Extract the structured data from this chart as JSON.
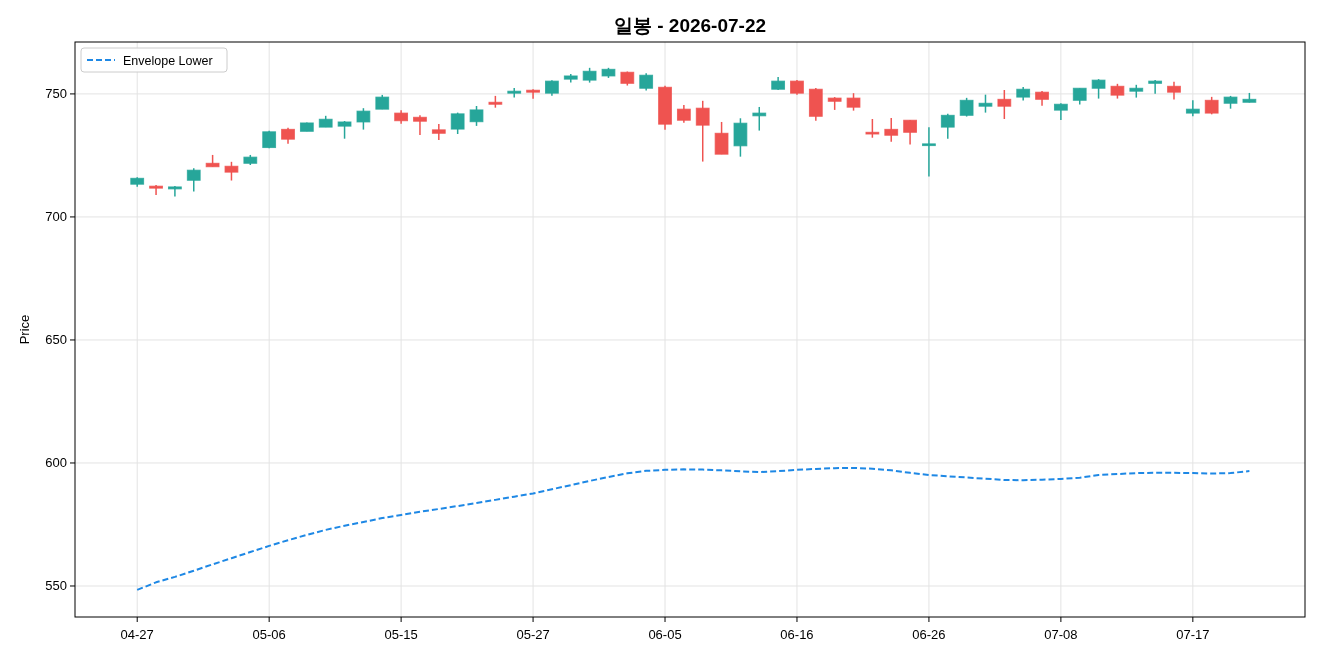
{
  "chart_data": {
    "type": "candlestick",
    "title": "일봉 - 2026-07-22",
    "ylabel": "Price",
    "categories": [
      "04-27",
      null,
      null,
      null,
      null,
      null,
      null,
      "05-06",
      null,
      null,
      null,
      null,
      null,
      null,
      "05-15",
      null,
      null,
      null,
      null,
      null,
      null,
      "05-27",
      null,
      null,
      null,
      null,
      null,
      null,
      "06-05",
      null,
      null,
      null,
      null,
      null,
      null,
      "06-16",
      null,
      null,
      null,
      null,
      null,
      null,
      "06-26",
      null,
      null,
      null,
      null,
      null,
      null,
      "07-08",
      null,
      null,
      null,
      null,
      null,
      null,
      "07-17",
      null,
      null,
      null
    ],
    "ylim": [
      537.4,
      771.1
    ],
    "yticks": [
      550,
      600,
      650,
      700,
      750
    ],
    "grid": true,
    "legend": "top left",
    "series": [
      {
        "type": "candlestick",
        "ohlc": [
          [
            713.3,
            716.1,
            712.3,
            715.7
          ],
          [
            712.5,
            713.0,
            708.9,
            711.7
          ],
          [
            711.4,
            712.6,
            708.3,
            712.2
          ],
          [
            714.9,
            719.8,
            710.3,
            719.0
          ],
          [
            721.8,
            725.2,
            720.4,
            720.4
          ],
          [
            720.6,
            722.4,
            714.8,
            718.2
          ],
          [
            721.8,
            725.2,
            721.1,
            724.3
          ],
          [
            728.2,
            735.0,
            727.9,
            734.6
          ],
          [
            735.6,
            736.2,
            729.7,
            731.6
          ],
          [
            734.8,
            738.4,
            734.8,
            738.2
          ],
          [
            736.5,
            741.1,
            736.5,
            739.7
          ],
          [
            736.9,
            739.0,
            731.8,
            738.6
          ],
          [
            738.6,
            744.2,
            735.5,
            743.0
          ],
          [
            743.8,
            749.6,
            743.8,
            748.7
          ],
          [
            742.2,
            743.4,
            737.9,
            739.1
          ],
          [
            740.5,
            741.3,
            733.3,
            738.9
          ],
          [
            735.4,
            737.8,
            731.3,
            734.0
          ],
          [
            735.7,
            742.4,
            733.7,
            741.9
          ],
          [
            738.7,
            745.1,
            737.0,
            743.5
          ],
          [
            746.6,
            749.2,
            744.4,
            745.8
          ],
          [
            750.3,
            752.4,
            748.5,
            751.1
          ],
          [
            751.5,
            751.9,
            748.0,
            750.7
          ],
          [
            750.3,
            755.6,
            749.3,
            755.2
          ],
          [
            756.0,
            758.1,
            754.6,
            757.3
          ],
          [
            755.6,
            760.6,
            754.6,
            759.2
          ],
          [
            757.3,
            760.6,
            756.5,
            760.0
          ],
          [
            758.8,
            759.1,
            753.4,
            754.3
          ],
          [
            752.3,
            758.4,
            751.4,
            757.6
          ],
          [
            752.7,
            753.3,
            735.4,
            737.7
          ],
          [
            743.8,
            745.5,
            738.3,
            739.3
          ],
          [
            744.2,
            747.2,
            722.5,
            737.3
          ],
          [
            734.0,
            738.6,
            725.5,
            725.5
          ],
          [
            728.9,
            740.1,
            724.5,
            738.1
          ],
          [
            741.1,
            744.7,
            735.1,
            742.2
          ],
          [
            751.9,
            756.9,
            751.6,
            755.2
          ],
          [
            755.2,
            755.7,
            749.7,
            750.3
          ],
          [
            751.9,
            752.4,
            739.1,
            740.9
          ],
          [
            748.3,
            748.7,
            743.5,
            747.0
          ],
          [
            748.3,
            750.3,
            743.2,
            744.6
          ],
          [
            734.4,
            739.8,
            732.2,
            733.7
          ],
          [
            735.6,
            740.2,
            730.6,
            733.2
          ],
          [
            739.3,
            739.4,
            729.4,
            734.4
          ],
          [
            729.0,
            736.5,
            716.4,
            729.7
          ],
          [
            736.5,
            741.9,
            731.8,
            741.3
          ],
          [
            741.3,
            748.4,
            740.8,
            747.4
          ],
          [
            745.0,
            749.7,
            742.4,
            746.2
          ],
          [
            747.8,
            751.6,
            739.8,
            745.0
          ],
          [
            748.7,
            752.8,
            747.3,
            751.9
          ],
          [
            750.7,
            751.2,
            745.2,
            747.8
          ],
          [
            743.4,
            746.2,
            739.4,
            745.8
          ],
          [
            747.4,
            752.3,
            745.7,
            752.3
          ],
          [
            752.3,
            756.0,
            748.1,
            755.6
          ],
          [
            753.1,
            754.1,
            748.1,
            749.5
          ],
          [
            751.1,
            753.7,
            748.5,
            752.3
          ],
          [
            754.3,
            755.7,
            750.1,
            755.2
          ],
          [
            753.1,
            754.9,
            747.7,
            750.7
          ],
          [
            742.2,
            747.4,
            740.9,
            743.8
          ],
          [
            747.4,
            748.8,
            741.7,
            742.2
          ],
          [
            746.2,
            749.2,
            744.0,
            748.7
          ],
          [
            746.6,
            750.4,
            746.5,
            747.8
          ]
        ],
        "colors": [
          "#26a69a",
          "#ef5350",
          "#26a69a",
          "#26a69a",
          "#ef5350",
          "#ef5350",
          "#26a69a",
          "#26a69a",
          "#ef5350",
          "#26a69a",
          "#26a69a",
          "#26a69a",
          "#26a69a",
          "#26a69a",
          "#ef5350",
          "#ef5350",
          "#ef5350",
          "#26a69a",
          "#26a69a",
          "#ef5350",
          "#26a69a",
          "#ef5350",
          "#26a69a",
          "#26a69a",
          "#26a69a",
          "#26a69a",
          "#ef5350",
          "#26a69a",
          "#ef5350",
          "#ef5350",
          "#ef5350",
          "#ef5350",
          "#26a69a",
          "#26a69a",
          "#26a69a",
          "#ef5350",
          "#ef5350",
          "#ef5350",
          "#ef5350",
          "#ef5350",
          "#ef5350",
          "#ef5350",
          "#26a69a",
          "#26a69a",
          "#26a69a",
          "#26a69a",
          "#ef5350",
          "#26a69a",
          "#ef5350",
          "#26a69a",
          "#26a69a",
          "#26a69a",
          "#ef5350",
          "#26a69a",
          "#26a69a",
          "#ef5350",
          "#26a69a",
          "#ef5350",
          "#26a69a",
          "#26a69a"
        ]
      },
      {
        "type": "line",
        "name": "Envelope Lower",
        "color": "#1e88e5",
        "line_style": "dashed",
        "values": [
          548.4,
          551.5,
          553.7,
          556.2,
          558.8,
          561.3,
          563.8,
          566.3,
          568.6,
          570.8,
          572.8,
          574.5,
          576.0,
          577.6,
          578.9,
          580.2,
          581.3,
          582.5,
          583.7,
          585.0,
          586.3,
          587.6,
          589.3,
          591.0,
          592.7,
          594.3,
          595.8,
          596.8,
          597.2,
          597.4,
          597.3,
          597.0,
          596.6,
          596.3,
          596.7,
          597.2,
          597.6,
          597.9,
          598.0,
          597.7,
          597.0,
          596.0,
          595.1,
          594.6,
          594.1,
          593.6,
          593.1,
          593.0,
          593.2,
          593.5,
          594.0,
          595.1,
          595.5,
          595.9,
          596.0,
          596.0,
          595.9,
          595.7,
          595.9,
          596.7
        ]
      }
    ]
  }
}
